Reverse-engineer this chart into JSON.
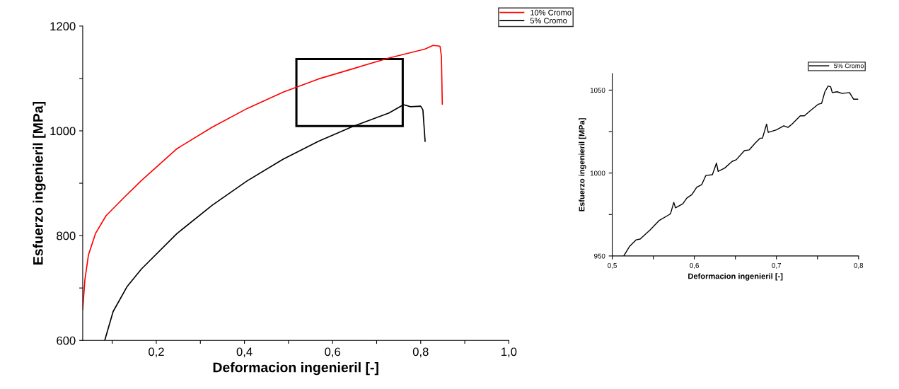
{
  "chart_data": [
    {
      "type": "line",
      "xlabel": "Deformacion ingenieril [-]",
      "ylabel": "Esfuerzo ingenieril [MPa]",
      "xlim": [
        0.033,
        1.0
      ],
      "ylim": [
        600,
        1200
      ],
      "xticks": [
        {
          "value": 0.1,
          "label": null
        },
        {
          "value": 0.2,
          "label": "0,2"
        },
        {
          "value": 0.3,
          "label": null
        },
        {
          "value": 0.4,
          "label": "0,4"
        },
        {
          "value": 0.5,
          "label": null
        },
        {
          "value": 0.6,
          "label": "0,6"
        },
        {
          "value": 0.7,
          "label": null
        },
        {
          "value": 0.8,
          "label": "0,8"
        },
        {
          "value": 0.9,
          "label": null
        },
        {
          "value": 1.0,
          "label": "1,0"
        }
      ],
      "yticks": [
        600,
        {
          "value": 700,
          "label": null
        },
        800,
        {
          "value": 900,
          "label": null
        },
        1000,
        {
          "value": 1100,
          "label": null
        },
        1200
      ],
      "legend": "top right",
      "grid": false,
      "marker": "none",
      "line_style": "solid",
      "series": [
        {
          "name": "10% Cromo",
          "color": "#ff0000",
          "x": [
            0.033,
            0.038,
            0.046,
            0.062,
            0.086,
            0.126,
            0.166,
            0.247,
            0.327,
            0.407,
            0.488,
            0.568,
            0.648,
            0.728,
            0.809,
            0.828,
            0.841,
            0.844,
            0.847,
            0.849
          ],
          "values": [
            659,
            716,
            763,
            804,
            838,
            872,
            905,
            966,
            1007,
            1043,
            1074,
            1099,
            1119,
            1139,
            1156,
            1163,
            1162,
            1161,
            1142,
            1051
          ]
        },
        {
          "name": "5% Cromo",
          "color": "#000000",
          "x": [
            0.083,
            0.102,
            0.134,
            0.166,
            0.247,
            0.327,
            0.407,
            0.488,
            0.568,
            0.648,
            0.728,
            0.761,
            0.777,
            0.8,
            0.805,
            0.81
          ],
          "values": [
            600,
            655,
            703,
            736,
            804,
            858,
            905,
            946,
            980,
            1009,
            1034,
            1050,
            1046,
            1047,
            1040,
            980
          ]
        }
      ]
    },
    {
      "type": "line",
      "xlabel": "Deformacion ingenieril [-]",
      "ylabel": "Esfuerzo ingenieril [MPa]",
      "xlim": [
        0.5,
        0.8
      ],
      "ylim": [
        950,
        1060
      ],
      "xticks": [
        {
          "value": 0.5,
          "label": "0,5"
        },
        {
          "value": 0.55,
          "label": null
        },
        {
          "value": 0.6,
          "label": "0,6"
        },
        {
          "value": 0.65,
          "label": null
        },
        {
          "value": 0.7,
          "label": "0,7"
        },
        {
          "value": 0.75,
          "label": null
        },
        {
          "value": 0.8,
          "label": "0,8"
        }
      ],
      "yticks": [
        950,
        {
          "value": 975,
          "label": null
        },
        1000,
        {
          "value": 1025,
          "label": null
        },
        1050
      ],
      "legend": "top right",
      "grid": false,
      "marker": "none",
      "line_style": "solid",
      "series": [
        {
          "name": "5% Cromo",
          "color": "#000000",
          "x": [
            0.514,
            0.521,
            0.529,
            0.534,
            0.546,
            0.557,
            0.569,
            0.571,
            0.575,
            0.577,
            0.586,
            0.591,
            0.597,
            0.603,
            0.609,
            0.614,
            0.622,
            0.627,
            0.629,
            0.637,
            0.646,
            0.651,
            0.661,
            0.667,
            0.674,
            0.68,
            0.683,
            0.688,
            0.69,
            0.7,
            0.709,
            0.714,
            0.719,
            0.729,
            0.734,
            0.741,
            0.751,
            0.755,
            0.759,
            0.763,
            0.766,
            0.768,
            0.774,
            0.78,
            0.789,
            0.794,
            0.799
          ],
          "values": [
            950,
            955.7,
            959.7,
            960.2,
            965.6,
            971.3,
            974.8,
            975.5,
            982.3,
            979,
            981.5,
            985,
            987,
            991.5,
            993,
            998.5,
            999,
            1006,
            1001,
            1003,
            1007,
            1008,
            1013.5,
            1014,
            1018,
            1021,
            1021,
            1029.5,
            1024.5,
            1026,
            1028.5,
            1027.5,
            1029.5,
            1034.5,
            1034.5,
            1037.5,
            1041.5,
            1042,
            1049,
            1052.5,
            1052,
            1048.5,
            1049,
            1048,
            1048.5,
            1044.5,
            1044.5
          ]
        }
      ]
    }
  ]
}
